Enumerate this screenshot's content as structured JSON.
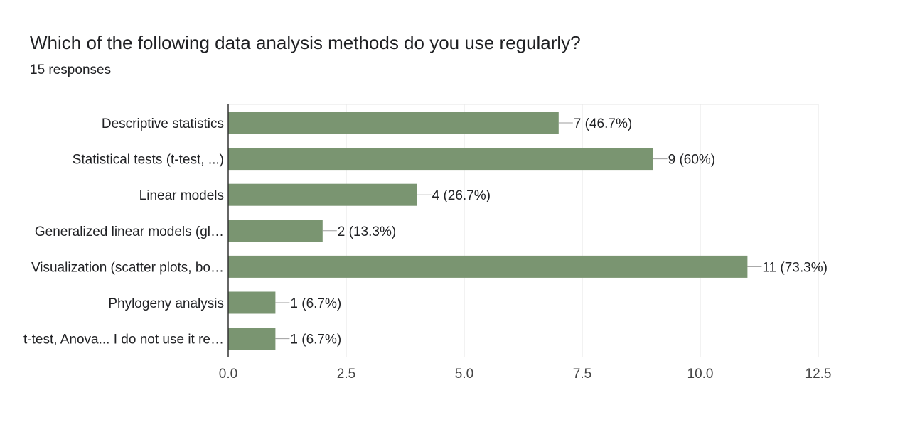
{
  "question": {
    "title": "Which of the following data analysis methods do you use regularly?",
    "responses": "15 responses"
  },
  "colors": {
    "bar": "#7a9571",
    "grid": "#e6e6e6",
    "axis": "#333333",
    "leader": "#9e9e9e"
  },
  "chart_data": {
    "type": "bar",
    "orientation": "horizontal",
    "title": "Which of the following data analysis methods do you use regularly?",
    "subtitle": "15 responses",
    "categories": [
      "Descriptive statistics",
      "Statistical tests (t-test, ...)",
      "Linear models",
      "Generalized linear models (gl…",
      "Visualization (scatter plots, bo…",
      "Phylogeny analysis",
      "t-test, Anova... I do not use it re…"
    ],
    "values": [
      7,
      9,
      4,
      2,
      11,
      1,
      1
    ],
    "data_labels": [
      "7 (46.7%)",
      "9 (60%)",
      "4 (26.7%)",
      "2 (13.3%)",
      "11 (73.3%)",
      "1 (6.7%)",
      "1 (6.7%)"
    ],
    "xlim": [
      0,
      12.5
    ],
    "xticks": [
      "0.0",
      "2.5",
      "5.0",
      "7.5",
      "10.0",
      "12.5"
    ],
    "xtick_values": [
      0,
      2.5,
      5,
      7.5,
      10,
      12.5
    ],
    "grid": true,
    "legend": "none"
  }
}
